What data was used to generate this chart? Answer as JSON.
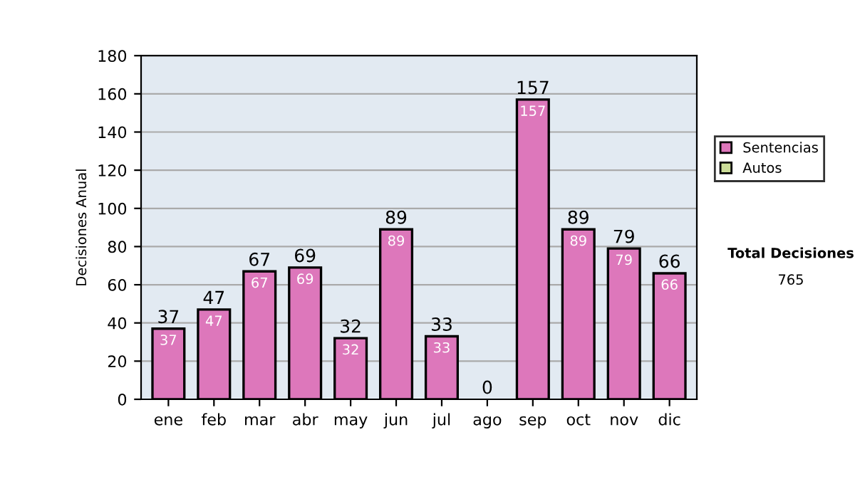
{
  "chart_data": {
    "type": "bar",
    "stacked": true,
    "ylabel": "Decisiones Anual",
    "categories": [
      "ene",
      "feb",
      "mar",
      "abr",
      "may",
      "jun",
      "jul",
      "ago",
      "sep",
      "oct",
      "nov",
      "dic"
    ],
    "series": [
      {
        "name": "Sentencias",
        "color": "#dd77bb",
        "values": [
          37,
          47,
          67,
          69,
          32,
          89,
          33,
          0,
          157,
          89,
          79,
          66
        ],
        "value_labels": [
          "37",
          "47",
          "67",
          "69",
          "32",
          "89",
          "33",
          null,
          "157",
          "89",
          "79",
          "66"
        ]
      },
      {
        "name": "Autos",
        "color": "#ccdd99",
        "values": [
          0,
          0,
          0,
          0,
          0,
          0,
          0,
          0,
          0,
          0,
          0,
          0
        ]
      }
    ],
    "totals": [
      "37",
      "47",
      "67",
      "69",
      "32",
      "89",
      "33",
      "0",
      "157",
      "89",
      "79",
      "66"
    ],
    "ylim": [
      0,
      180
    ],
    "yticks": [
      0,
      20,
      40,
      60,
      80,
      100,
      120,
      140,
      160,
      180
    ],
    "grid": "y",
    "legend": "right",
    "annotations": [
      "Total Decisiones",
      "765"
    ]
  }
}
